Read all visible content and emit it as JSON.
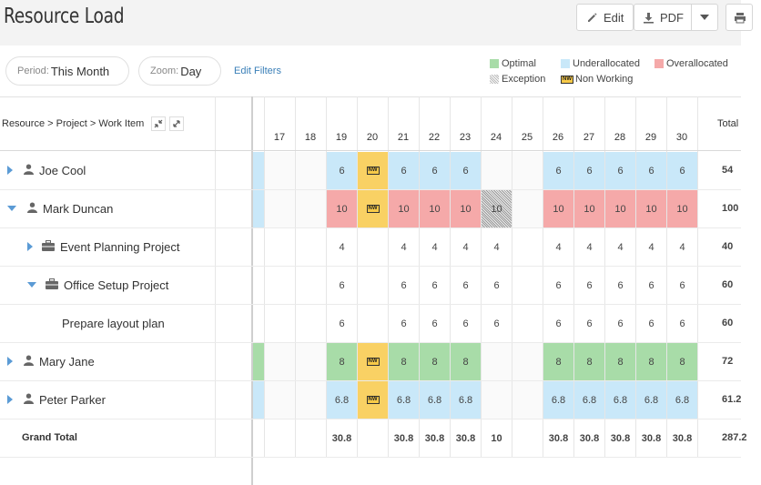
{
  "header": {
    "title": "Resource Load",
    "edit_label": "Edit",
    "pdf_label": "PDF"
  },
  "filters": {
    "period_label": "Period:",
    "period_value": "This Month",
    "zoom_label": "Zoom:",
    "zoom_value": "Day",
    "edit_filters": "Edit Filters"
  },
  "legend": {
    "optimal": "Optimal",
    "underallocated": "Underallocated",
    "overallocated": "Overallocated",
    "exception": "Exception",
    "non_working": "Non Working",
    "colors": {
      "optimal": "#a8dca8",
      "underallocated": "#c9e8f9",
      "overallocated": "#f5a9a9",
      "non_working": "#f9d164"
    }
  },
  "grid": {
    "hierarchy_label": "Resource > Project > Work Item",
    "total_label": "Total",
    "days": [
      "17",
      "18",
      "19",
      "20",
      "21",
      "22",
      "23",
      "24",
      "25",
      "26",
      "27",
      "28",
      "29",
      "30"
    ],
    "non_working_text": "NW",
    "rows": [
      {
        "label": "Joe Cool",
        "type": "resource",
        "expanded": false,
        "total": "54",
        "cells": [
          "",
          "",
          "6",
          "NW",
          "6",
          "6",
          "6",
          "",
          "",
          "6",
          "6",
          "6",
          "6",
          "6"
        ],
        "states": [
          "",
          "",
          "under",
          "nw",
          "under",
          "under",
          "under",
          "",
          "",
          "under",
          "under",
          "under",
          "under",
          "under"
        ]
      },
      {
        "label": "Mark Duncan",
        "type": "resource",
        "expanded": true,
        "total": "100",
        "cells": [
          "",
          "",
          "10",
          "NW",
          "10",
          "10",
          "10",
          "10",
          "",
          "10",
          "10",
          "10",
          "10",
          "10"
        ],
        "states": [
          "",
          "",
          "over",
          "nw",
          "over",
          "over",
          "over",
          "exc",
          "",
          "over",
          "over",
          "over",
          "over",
          "over"
        ]
      },
      {
        "label": "Event Planning Project",
        "type": "project",
        "expanded": false,
        "total": "40",
        "cells": [
          "",
          "",
          "4",
          "",
          "4",
          "4",
          "4",
          "4",
          "",
          "4",
          "4",
          "4",
          "4",
          "4"
        ],
        "states": [
          "",
          "",
          "",
          "",
          "",
          "",
          "",
          "",
          "",
          "",
          "",
          "",
          "",
          ""
        ]
      },
      {
        "label": "Office Setup Project",
        "type": "project",
        "expanded": true,
        "total": "60",
        "cells": [
          "",
          "",
          "6",
          "",
          "6",
          "6",
          "6",
          "6",
          "",
          "6",
          "6",
          "6",
          "6",
          "6"
        ],
        "states": [
          "",
          "",
          "",
          "",
          "",
          "",
          "",
          "",
          "",
          "",
          "",
          "",
          "",
          ""
        ]
      },
      {
        "label": "Prepare layout plan",
        "type": "item",
        "expanded": false,
        "total": "60",
        "cells": [
          "",
          "",
          "6",
          "",
          "6",
          "6",
          "6",
          "6",
          "",
          "6",
          "6",
          "6",
          "6",
          "6"
        ],
        "states": [
          "",
          "",
          "",
          "",
          "",
          "",
          "",
          "",
          "",
          "",
          "",
          "",
          "",
          ""
        ]
      },
      {
        "label": "Mary Jane",
        "type": "resource",
        "expanded": false,
        "total": "72",
        "cells": [
          "",
          "",
          "8",
          "NW",
          "8",
          "8",
          "8",
          "",
          "",
          "8",
          "8",
          "8",
          "8",
          "8"
        ],
        "states": [
          "",
          "",
          "opt",
          "nw",
          "opt",
          "opt",
          "opt",
          "",
          "",
          "opt",
          "opt",
          "opt",
          "opt",
          "opt"
        ]
      },
      {
        "label": "Peter Parker",
        "type": "resource",
        "expanded": false,
        "total": "61.2",
        "cells": [
          "",
          "",
          "6.8",
          "NW",
          "6.8",
          "6.8",
          "6.8",
          "",
          "",
          "6.8",
          "6.8",
          "6.8",
          "6.8",
          "6.8"
        ],
        "states": [
          "",
          "",
          "under",
          "nw",
          "under",
          "under",
          "under",
          "",
          "",
          "under",
          "under",
          "under",
          "under",
          "under"
        ]
      },
      {
        "label": "Grand Total",
        "type": "total",
        "expanded": false,
        "total": "287.2",
        "cells": [
          "",
          "",
          "30.8",
          "",
          "30.8",
          "30.8",
          "30.8",
          "10",
          "",
          "30.8",
          "30.8",
          "30.8",
          "30.8",
          "30.8"
        ],
        "states": [
          "",
          "",
          "",
          "",
          "",
          "",
          "",
          "",
          "",
          "",
          "",
          "",
          "",
          ""
        ]
      }
    ]
  }
}
